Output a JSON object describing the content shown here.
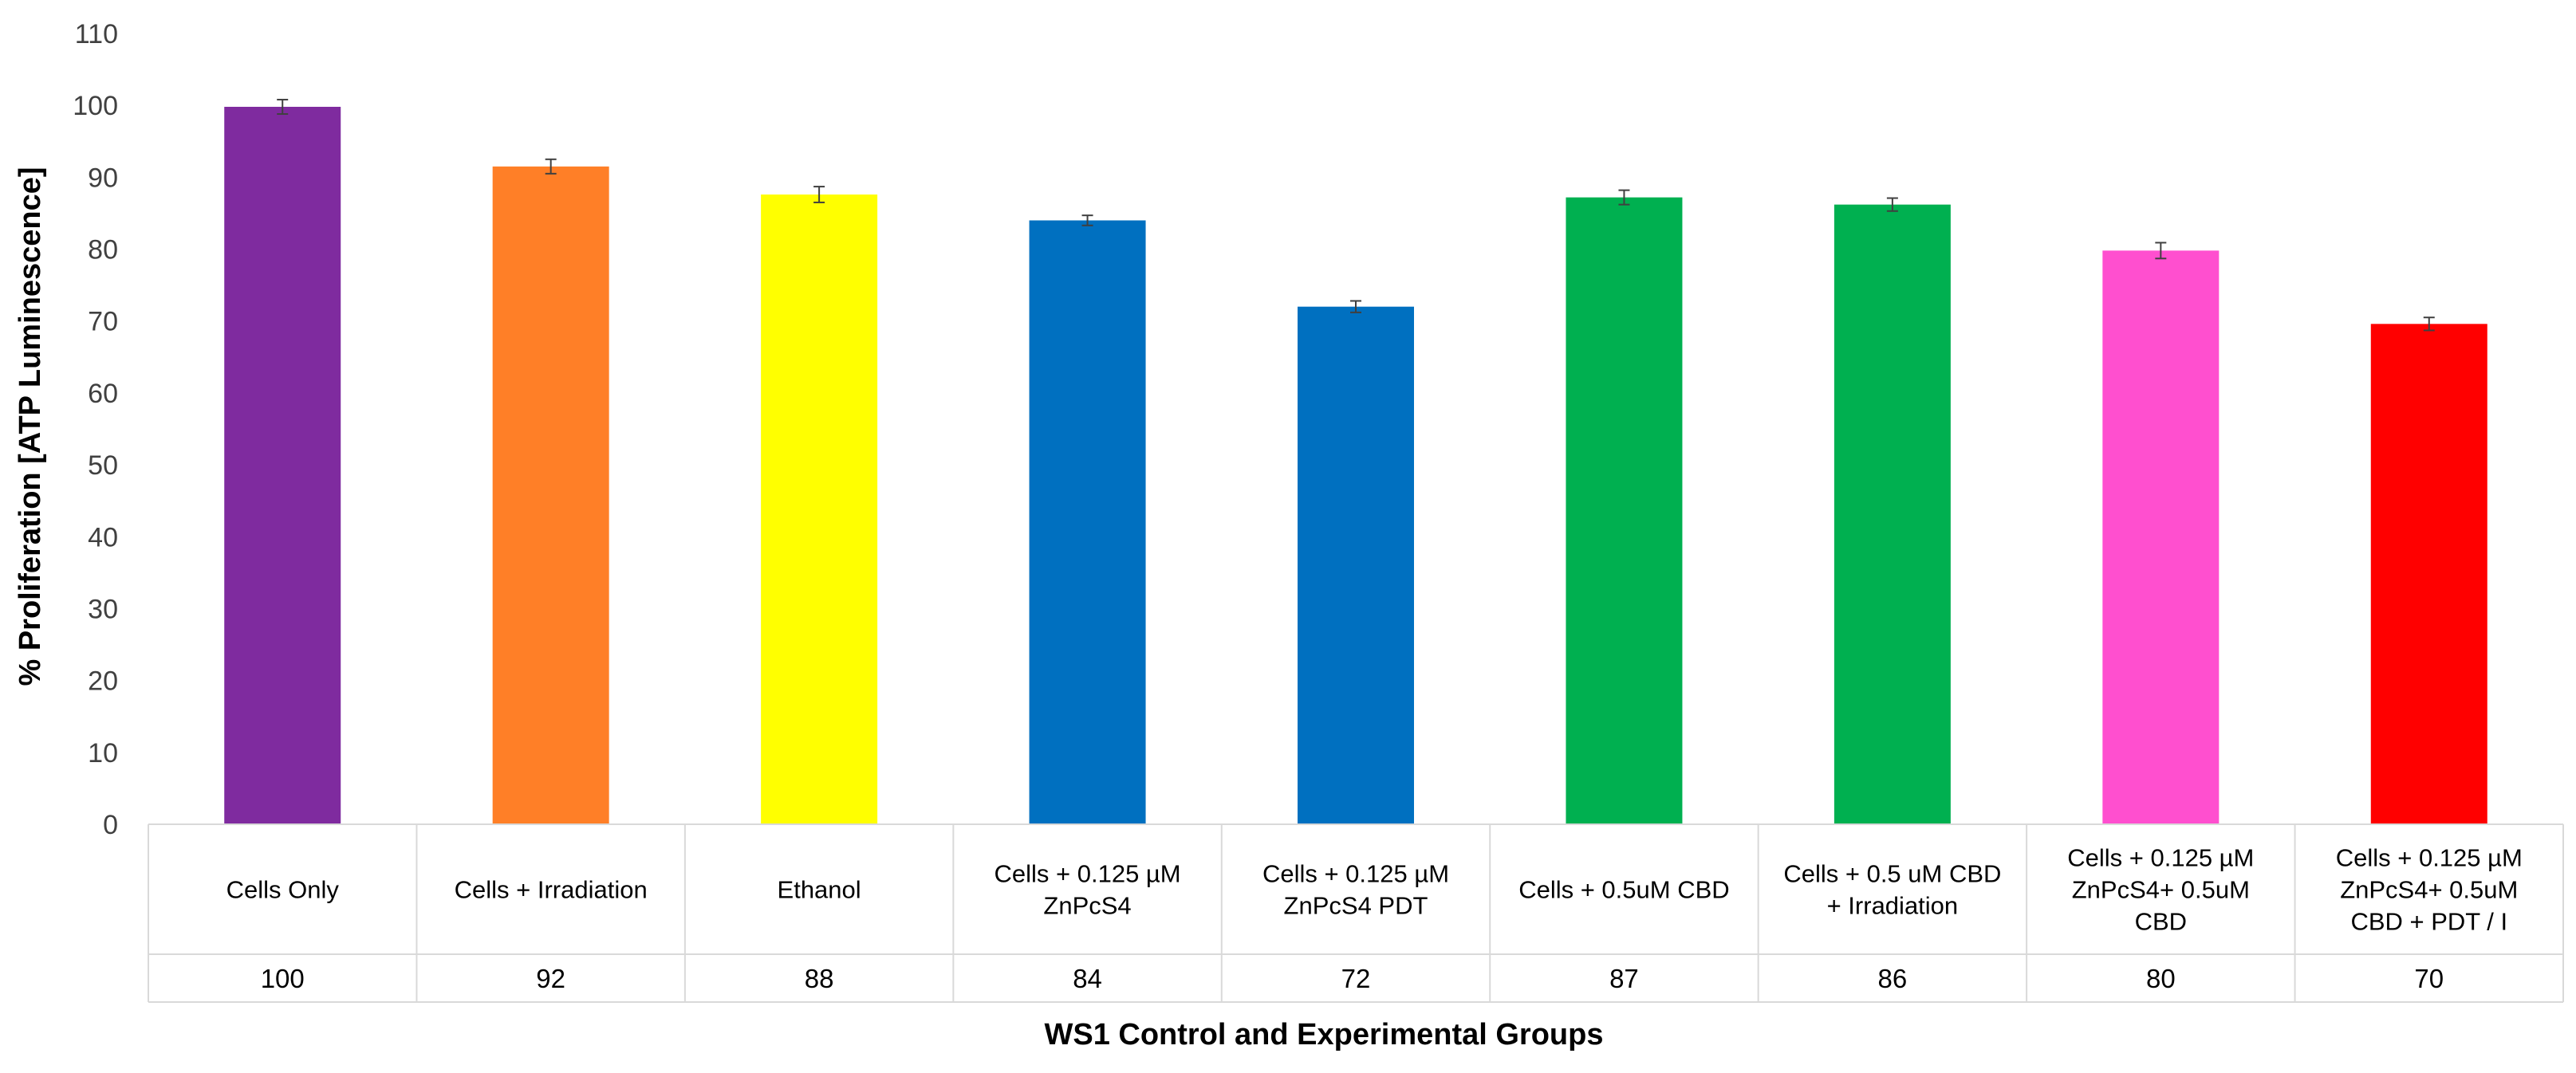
{
  "chart_data": {
    "type": "bar",
    "title": "",
    "xlabel": "WS1 Control and Experimental Groups",
    "ylabel": "% Proliferation [ATP Luminescence]",
    "ylim": [
      0,
      110
    ],
    "yticks": [
      0,
      10,
      20,
      30,
      40,
      50,
      60,
      70,
      80,
      90,
      100,
      110
    ],
    "ytick_labels": [
      "0",
      "10",
      "20",
      "30",
      "40",
      "50",
      "60",
      "70",
      "80",
      "90",
      "100",
      "110"
    ],
    "grid": false,
    "legend": "none",
    "categories": [
      [
        "Cells Only"
      ],
      [
        "Cells + Irradiation"
      ],
      [
        "Ethanol"
      ],
      [
        "Cells + 0.125 µM",
        "ZnPcS4"
      ],
      [
        "Cells + 0.125 µM",
        "ZnPcS4 PDT"
      ],
      [
        "Cells + 0.5uM CBD"
      ],
      [
        "Cells + 0.5 uM CBD",
        "+ Irradiation"
      ],
      [
        "Cells + 0.125 µM",
        "ZnPcS4+ 0.5uM",
        "CBD"
      ],
      [
        "Cells + 0.125 µM",
        "ZnPcS4+ 0.5uM",
        "CBD + PDT / I"
      ]
    ],
    "values": [
      100,
      92,
      88,
      84,
      72,
      87,
      86,
      80,
      70
    ],
    "plotted_values": [
      99.8,
      91.5,
      87.6,
      84.0,
      72.0,
      87.2,
      86.2,
      79.8,
      69.6
    ],
    "error": [
      1.0,
      1.0,
      1.1,
      0.7,
      0.8,
      1.0,
      0.9,
      1.1,
      0.9
    ],
    "colors": [
      "#7F2B9F",
      "#FF7F27",
      "#FFFF00",
      "#0070C0",
      "#0070C0",
      "#00B050",
      "#00B050",
      "#FF4FCF",
      "#FF0000"
    ],
    "error_bar_color": "#404040",
    "axis_color": "#D9D9D9"
  }
}
